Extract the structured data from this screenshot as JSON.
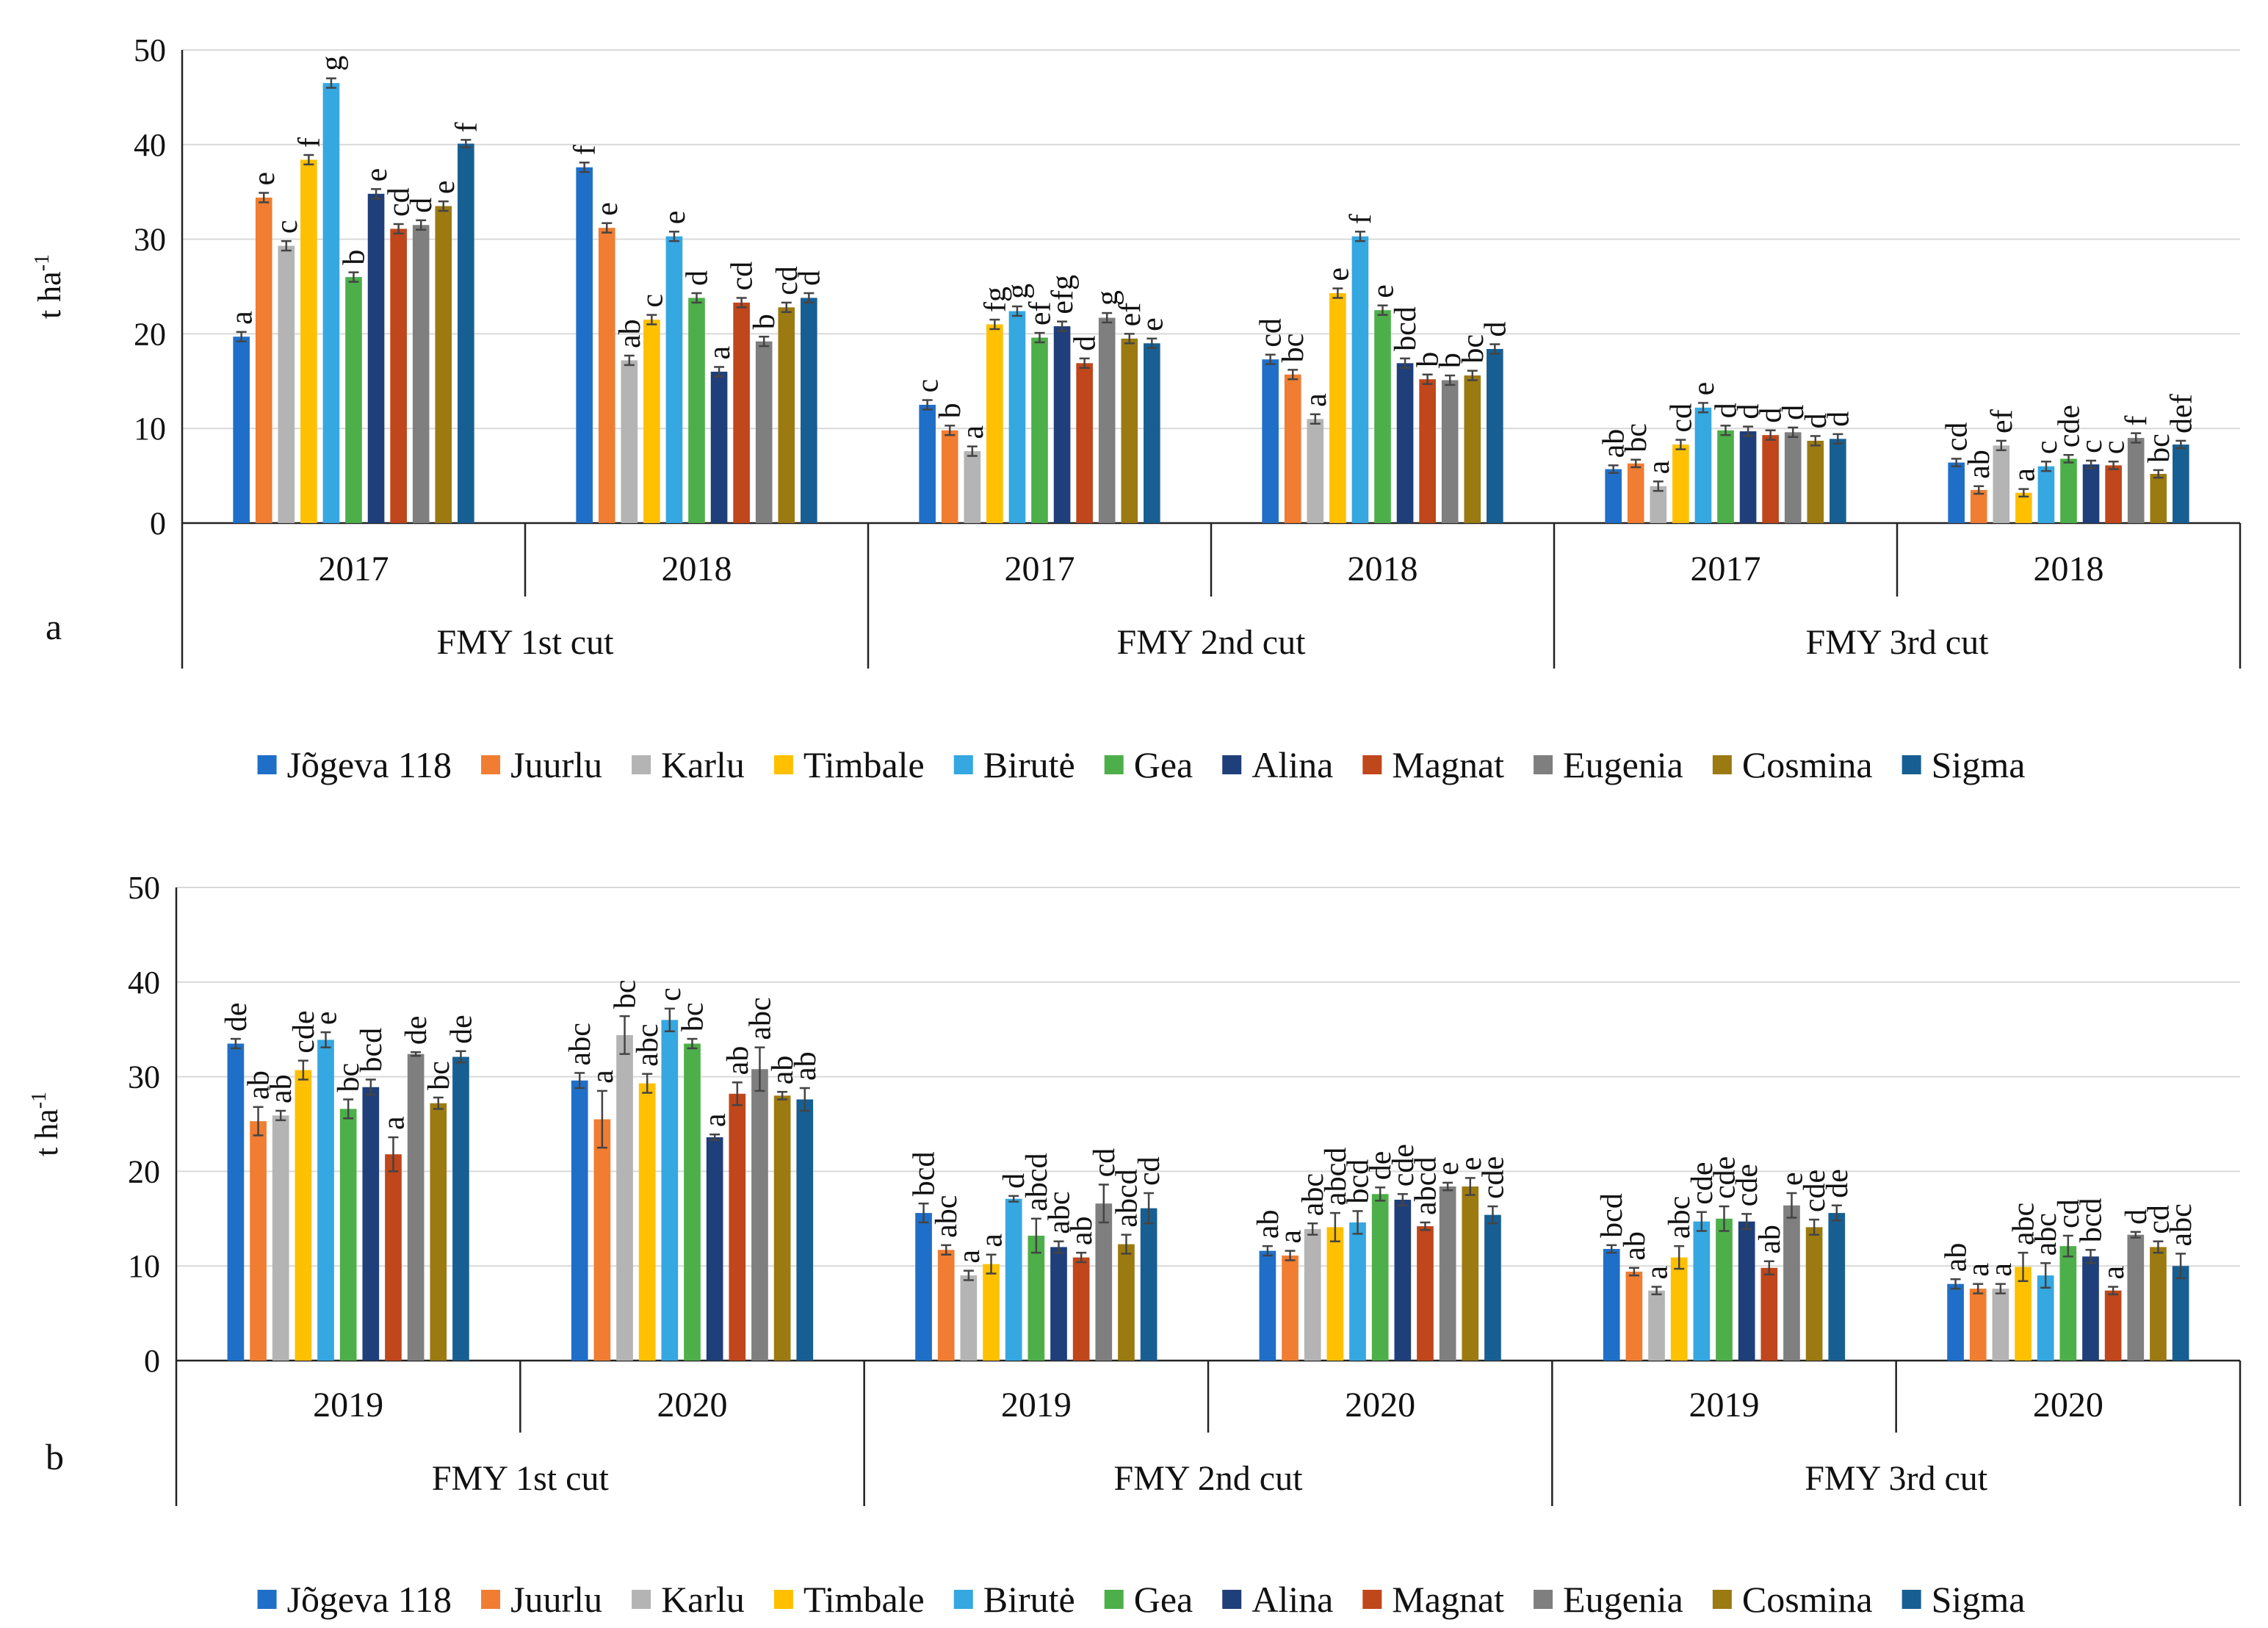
{
  "chart_data": [
    {
      "type": "bar",
      "panel_label": "a",
      "ylabel": "t ha",
      "ylabel_sup": "-1",
      "ylim": [
        0,
        50
      ],
      "yticks": [
        0,
        10,
        20,
        30,
        40,
        50
      ],
      "grid": true,
      "groups": [
        {
          "cut": "FMY 1st cut",
          "years": [
            "2017",
            "2018"
          ]
        },
        {
          "cut": "FMY 2nd cut",
          "years": [
            "2017",
            "2018"
          ]
        },
        {
          "cut": "FMY 3rd cut",
          "years": [
            "2017",
            "2018"
          ]
        }
      ],
      "series": [
        {
          "name": "Jõgeva 118",
          "color": "#1f6fc8",
          "values": [
            19.7,
            37.6,
            12.5,
            17.3,
            5.7,
            6.4
          ],
          "errors": [
            0.5,
            0.5,
            0.5,
            0.5,
            0.4,
            0.4
          ],
          "letters": [
            "a",
            "f",
            "c",
            "cd",
            "ab",
            "cd"
          ]
        },
        {
          "name": "Juurlu",
          "color": "#f07d32",
          "values": [
            34.4,
            31.2,
            9.8,
            15.7,
            6.3,
            3.5
          ],
          "errors": [
            0.5,
            0.5,
            0.5,
            0.5,
            0.4,
            0.4
          ],
          "letters": [
            "e",
            "e",
            "b",
            "bc",
            "bc",
            "ab"
          ]
        },
        {
          "name": "Karlu",
          "color": "#b4b4b4",
          "values": [
            29.3,
            17.2,
            7.6,
            11.0,
            3.9,
            8.2
          ],
          "errors": [
            0.5,
            0.5,
            0.5,
            0.5,
            0.5,
            0.5
          ],
          "letters": [
            "c",
            "ab",
            "a",
            "a",
            "a",
            "ef"
          ]
        },
        {
          "name": "Timbale",
          "color": "#ffc000",
          "values": [
            38.4,
            21.5,
            21.0,
            24.3,
            8.3,
            3.2
          ],
          "errors": [
            0.5,
            0.5,
            0.5,
            0.5,
            0.5,
            0.4
          ],
          "letters": [
            "f",
            "c",
            "fg",
            "e",
            "cd",
            "a"
          ]
        },
        {
          "name": "Birutė",
          "color": "#35a7e1",
          "values": [
            46.5,
            30.3,
            22.4,
            30.3,
            12.2,
            6.0
          ],
          "errors": [
            0.5,
            0.5,
            0.5,
            0.5,
            0.5,
            0.5
          ],
          "letters": [
            "g",
            "e",
            "g",
            "f",
            "e",
            "c"
          ]
        },
        {
          "name": "Gea",
          "color": "#4daf49",
          "values": [
            26.0,
            23.8,
            19.6,
            22.5,
            9.8,
            6.8
          ],
          "errors": [
            0.5,
            0.5,
            0.5,
            0.5,
            0.5,
            0.4
          ],
          "letters": [
            "b",
            "d",
            "ef",
            "e",
            "d",
            "cde"
          ]
        },
        {
          "name": "Alina",
          "color": "#1f3f7a",
          "values": [
            34.8,
            16.0,
            20.8,
            16.9,
            9.7,
            6.2
          ],
          "errors": [
            0.5,
            0.5,
            0.5,
            0.5,
            0.5,
            0.4
          ],
          "letters": [
            "e",
            "a",
            "efg",
            "bcd",
            "d",
            "c"
          ]
        },
        {
          "name": "Magnat",
          "color": "#c0461b",
          "values": [
            31.1,
            23.3,
            16.9,
            15.2,
            9.3,
            6.1
          ],
          "errors": [
            0.5,
            0.5,
            0.5,
            0.5,
            0.5,
            0.4
          ],
          "letters": [
            "cd",
            "cd",
            "d",
            "b",
            "d",
            "c"
          ]
        },
        {
          "name": "Eugenia",
          "color": "#7f7f7f",
          "values": [
            31.5,
            19.2,
            21.7,
            15.1,
            9.6,
            9.0
          ],
          "errors": [
            0.5,
            0.5,
            0.5,
            0.5,
            0.5,
            0.5
          ],
          "letters": [
            "d",
            "b",
            "g",
            "b",
            "d",
            "f"
          ]
        },
        {
          "name": "Cosmina",
          "color": "#9c7a12",
          "values": [
            33.5,
            22.8,
            19.5,
            15.6,
            8.7,
            5.2
          ],
          "errors": [
            0.5,
            0.5,
            0.5,
            0.5,
            0.5,
            0.4
          ],
          "letters": [
            "e",
            "cd",
            "ef",
            "bc",
            "d",
            "bc"
          ]
        },
        {
          "name": "Sigma",
          "color": "#175f93",
          "values": [
            40.1,
            23.8,
            19.0,
            18.4,
            8.9,
            8.3
          ],
          "errors": [
            0.4,
            0.5,
            0.5,
            0.5,
            0.5,
            0.4
          ],
          "letters": [
            "f",
            "d",
            "e",
            "d",
            "d",
            "def"
          ]
        }
      ]
    },
    {
      "type": "bar",
      "panel_label": "b",
      "ylabel": "t ha",
      "ylabel_sup": "-1",
      "ylim": [
        0,
        50
      ],
      "yticks": [
        0,
        10,
        20,
        30,
        40,
        50
      ],
      "grid": true,
      "groups": [
        {
          "cut": "FMY 1st cut",
          "years": [
            "2019",
            "2020"
          ]
        },
        {
          "cut": "FMY 2nd cut",
          "years": [
            "2019",
            "2020"
          ]
        },
        {
          "cut": "FMY 3rd cut",
          "years": [
            "2019",
            "2020"
          ]
        }
      ],
      "series": [
        {
          "name": "Jõgeva 118",
          "color": "#1f6fc8",
          "values": [
            33.5,
            29.6,
            15.6,
            11.6,
            11.8,
            8.1
          ],
          "errors": [
            0.5,
            0.8,
            1.0,
            0.5,
            0.4,
            0.5
          ],
          "letters": [
            "de",
            "abc",
            "bcd",
            "ab",
            "bcd",
            "ab"
          ]
        },
        {
          "name": "Juurlu",
          "color": "#f07d32",
          "values": [
            25.3,
            25.5,
            11.7,
            11.1,
            9.4,
            7.6
          ],
          "errors": [
            1.5,
            3.0,
            0.5,
            0.5,
            0.4,
            0.5
          ],
          "letters": [
            "ab",
            "a",
            "abc",
            "a",
            "ab",
            "a"
          ]
        },
        {
          "name": "Karlu",
          "color": "#b4b4b4",
          "values": [
            25.9,
            34.4,
            9.0,
            13.9,
            7.4,
            7.6
          ],
          "errors": [
            0.5,
            2.0,
            0.5,
            0.6,
            0.4,
            0.5
          ],
          "letters": [
            "ab",
            "bc",
            "a",
            "abc",
            "a",
            "a"
          ]
        },
        {
          "name": "Timbale",
          "color": "#ffc000",
          "values": [
            30.7,
            29.3,
            10.2,
            14.1,
            10.9,
            9.9
          ],
          "errors": [
            1.0,
            1.0,
            1.0,
            1.5,
            1.2,
            1.5
          ],
          "letters": [
            "cde",
            "abc",
            "a",
            "abcd",
            "abc",
            "abc"
          ]
        },
        {
          "name": "Birutė",
          "color": "#35a7e1",
          "values": [
            33.9,
            36.0,
            17.1,
            14.6,
            14.7,
            9.0
          ],
          "errors": [
            0.8,
            1.2,
            0.3,
            1.2,
            1.0,
            1.3
          ],
          "letters": [
            "e",
            "c",
            "d",
            "bcd",
            "cde",
            "abc"
          ]
        },
        {
          "name": "Gea",
          "color": "#4daf49",
          "values": [
            26.6,
            33.5,
            13.2,
            17.6,
            15.0,
            12.1
          ],
          "errors": [
            1.0,
            0.5,
            1.8,
            0.7,
            1.3,
            1.1
          ],
          "letters": [
            "bc",
            "bc",
            "abcd",
            "de",
            "cde",
            "cd"
          ]
        },
        {
          "name": "Alina",
          "color": "#1f3f7a",
          "values": [
            28.9,
            23.6,
            12.0,
            17.0,
            14.7,
            11.0
          ],
          "errors": [
            0.8,
            0.3,
            0.6,
            0.6,
            0.8,
            0.7
          ],
          "letters": [
            "bcd",
            "a",
            "abc",
            "cde",
            "cde",
            "bcd"
          ]
        },
        {
          "name": "Magnat",
          "color": "#c0461b",
          "values": [
            21.8,
            28.2,
            10.9,
            14.2,
            9.8,
            7.4
          ],
          "errors": [
            1.8,
            1.2,
            0.5,
            0.4,
            0.7,
            0.4
          ],
          "letters": [
            "a",
            "ab",
            "ab",
            "abcd",
            "ab",
            "a"
          ]
        },
        {
          "name": "Eugenia",
          "color": "#7f7f7f",
          "values": [
            32.4,
            30.8,
            16.6,
            18.4,
            16.4,
            13.3
          ],
          "errors": [
            0.2,
            2.3,
            2.0,
            0.4,
            1.3,
            0.3
          ],
          "letters": [
            "de",
            "abc",
            "cd",
            "e",
            "e",
            "d"
          ]
        },
        {
          "name": "Cosmina",
          "color": "#9c7a12",
          "values": [
            27.2,
            28.0,
            12.3,
            18.4,
            14.1,
            12.0
          ],
          "errors": [
            0.6,
            0.4,
            1.0,
            0.9,
            0.8,
            0.6
          ],
          "letters": [
            "bc",
            "ab",
            "abcd",
            "e",
            "cde",
            "cd"
          ]
        },
        {
          "name": "Sigma",
          "color": "#175f93",
          "values": [
            32.1,
            27.6,
            16.1,
            15.4,
            15.6,
            10.0
          ],
          "errors": [
            0.6,
            1.2,
            1.6,
            0.9,
            0.8,
            1.3
          ],
          "letters": [
            "de",
            "ab",
            "cd",
            "cde",
            "de",
            "abc"
          ]
        }
      ]
    }
  ]
}
